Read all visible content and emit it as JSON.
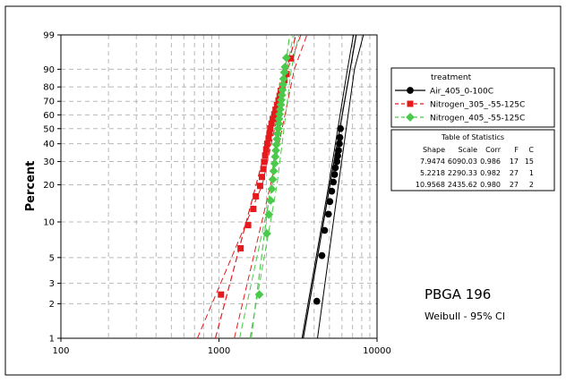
{
  "chart_data": {
    "type": "scatter",
    "title": "",
    "xlabel": "",
    "ylabel": "Percent",
    "x_scale": "log",
    "y_scale": "weibull-probability",
    "xlim": [
      100,
      10000
    ],
    "ylim": [
      1,
      99
    ],
    "x_ticks": [
      100,
      1000,
      10000
    ],
    "x_tick_labels": [
      "100",
      "1000",
      "10000"
    ],
    "y_ticks": [
      1,
      2,
      3,
      5,
      10,
      20,
      30,
      40,
      50,
      60,
      70,
      80,
      90,
      99
    ],
    "y_tick_labels": [
      "1",
      "2",
      "3",
      "5",
      "10",
      "20",
      "30",
      "40",
      "50",
      "60",
      "70",
      "80",
      "90",
      "99"
    ],
    "grid": true,
    "legend": {
      "title": "treatment",
      "placement": "right",
      "entries": [
        "Air_405_0-100C",
        "Nitrogen_305_-55-125C",
        "Nitrogen_405_-55-125C"
      ]
    },
    "statistics_table": {
      "title": "Table of Statistics",
      "columns": [
        "Shape",
        "Scale",
        "Corr",
        "F",
        "C"
      ],
      "rows": [
        [
          "7.9474",
          "6090.03",
          "0.986",
          "17",
          "15"
        ],
        [
          "5.2218",
          "2290.33",
          "0.982",
          "27",
          "1"
        ],
        [
          "10.9568",
          "2435.62",
          "0.980",
          "27",
          "2"
        ]
      ]
    },
    "annotations": {
      "part": "PBGA 196",
      "method": "Weibull - 95% CI"
    },
    "series": [
      {
        "name": "Air_405_0-100C",
        "color": "#000000",
        "marker": "circle",
        "line_style": "solid",
        "shape": 7.9474,
        "scale": 6090.03,
        "ci_lower": [
          [
            3350,
            1
          ],
          [
            4950,
            20
          ],
          [
            6500,
            90
          ],
          [
            7100,
            99
          ]
        ],
        "ci_upper": [
          [
            4200,
            1
          ],
          [
            5700,
            20
          ],
          [
            7200,
            90
          ],
          [
            8200,
            99
          ]
        ],
        "x": [
          4160,
          4480,
          4660,
          4930,
          5030,
          5170,
          5290,
          5390,
          5450,
          5580,
          5640,
          5700,
          5780,
          5820,
          5870
        ],
        "y": [
          2.1,
          5.2,
          8.5,
          11.6,
          14.7,
          17.8,
          21,
          24,
          27,
          30,
          33,
          36,
          40,
          44,
          50
        ]
      },
      {
        "name": "Nitrogen_305_-55-125C",
        "color": "#e41a1c",
        "marker": "square",
        "line_style": "dashed",
        "shape": 5.2218,
        "scale": 2290.33,
        "ci_lower": [
          [
            730,
            1
          ],
          [
            1880,
            20
          ],
          [
            2720,
            90
          ],
          [
            3300,
            99
          ]
        ],
        "ci_upper": [
          [
            1250,
            1
          ],
          [
            2120,
            20
          ],
          [
            3000,
            90
          ],
          [
            3600,
            99
          ]
        ],
        "x": [
          1030,
          1370,
          1530,
          1650,
          1710,
          1820,
          1870,
          1910,
          1930,
          1960,
          1990,
          2020,
          2060,
          2090,
          2110,
          2150,
          2190,
          2240,
          2280,
          2330,
          2380,
          2420,
          2460,
          2520,
          2590,
          2680,
          2850
        ],
        "y": [
          2.4,
          6.0,
          9.4,
          12.8,
          16.2,
          19.6,
          23.0,
          26.4,
          29.8,
          33.2,
          36.6,
          40.0,
          43.4,
          46.8,
          50.2,
          53.6,
          57.0,
          60.4,
          63.8,
          67.2,
          70.6,
          74.0,
          77.4,
          80.8,
          84.2,
          87.6,
          94.3
        ]
      },
      {
        "name": "Nitrogen_405_-55-125C",
        "color": "#4bc94b",
        "marker": "diamond",
        "line_style": "dashed",
        "shape": 10.9568,
        "scale": 2435.62,
        "ci_lower": [
          [
            1350,
            1
          ],
          [
            2180,
            20
          ],
          [
            2700,
            90
          ],
          [
            2950,
            99
          ]
        ],
        "ci_upper": [
          [
            1570,
            1
          ],
          [
            2330,
            20
          ],
          [
            2870,
            90
          ],
          [
            3200,
            99
          ]
        ],
        "x": [
          1800,
          2010,
          2070,
          2120,
          2160,
          2190,
          2220,
          2250,
          2270,
          2290,
          2310,
          2330,
          2350,
          2370,
          2390,
          2400,
          2420,
          2440,
          2460,
          2480,
          2500,
          2520,
          2540,
          2560,
          2590,
          2620,
          2670
        ],
        "y": [
          2.4,
          8.0,
          11.5,
          15.0,
          18.5,
          22.0,
          25.5,
          29.0,
          32.5,
          36.0,
          39.5,
          43.0,
          46.5,
          50.0,
          53.5,
          57.0,
          60.5,
          64.0,
          67.5,
          71.0,
          74.5,
          78.0,
          81.5,
          85.0,
          88.5,
          91.0,
          94.5
        ]
      }
    ]
  }
}
